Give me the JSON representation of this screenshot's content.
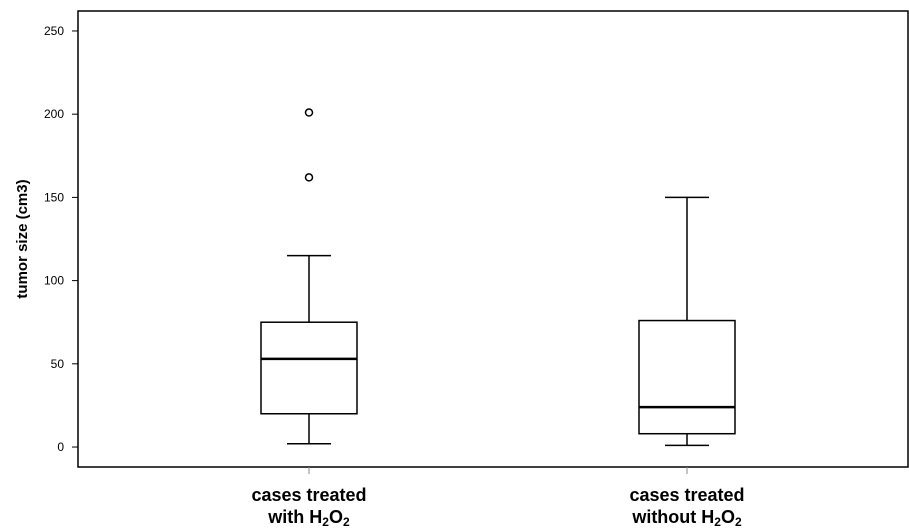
{
  "chart_data": {
    "type": "boxplot",
    "ylabel": "tumor size (cm3)",
    "ylim": [
      -12,
      262
    ],
    "yticks": [
      0,
      50,
      100,
      150,
      200,
      250
    ],
    "categories": [
      {
        "line1": "cases treated",
        "line2_prefix": "with H",
        "sub1": "2",
        "mid": "O",
        "sub2": "2"
      },
      {
        "line1": "cases treated",
        "line2_prefix": "without H",
        "sub1": "2",
        "mid": "O",
        "sub2": "2"
      }
    ],
    "boxes": [
      {
        "whisker_low": 2,
        "q1": 20,
        "median": 53,
        "q3": 75,
        "whisker_high": 115,
        "outliers": [
          162,
          201
        ]
      },
      {
        "whisker_low": 1,
        "q1": 8,
        "median": 24,
        "q3": 76,
        "whisker_high": 150,
        "outliers": []
      }
    ]
  }
}
